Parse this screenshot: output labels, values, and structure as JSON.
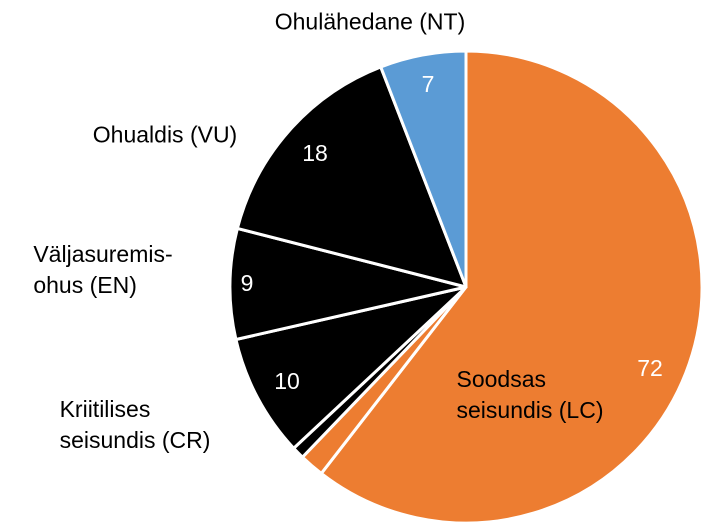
{
  "chart_data": {
    "type": "pie",
    "categories": [
      "Soodsas\nseisundis (LC)",
      null,
      null,
      "Kriitilises\nseisundis (CR)",
      "Väljasuremis-\nohus (EN)",
      "Ohualdis (VU)",
      "Ohulähedane (NT)"
    ],
    "values": [
      72,
      2,
      1,
      10,
      9,
      18,
      7
    ],
    "colors": [
      "#ED7D31",
      "#ED7D31",
      "#000000",
      "#000000",
      "#000000",
      "#000000",
      "#5B9BD5"
    ]
  }
}
